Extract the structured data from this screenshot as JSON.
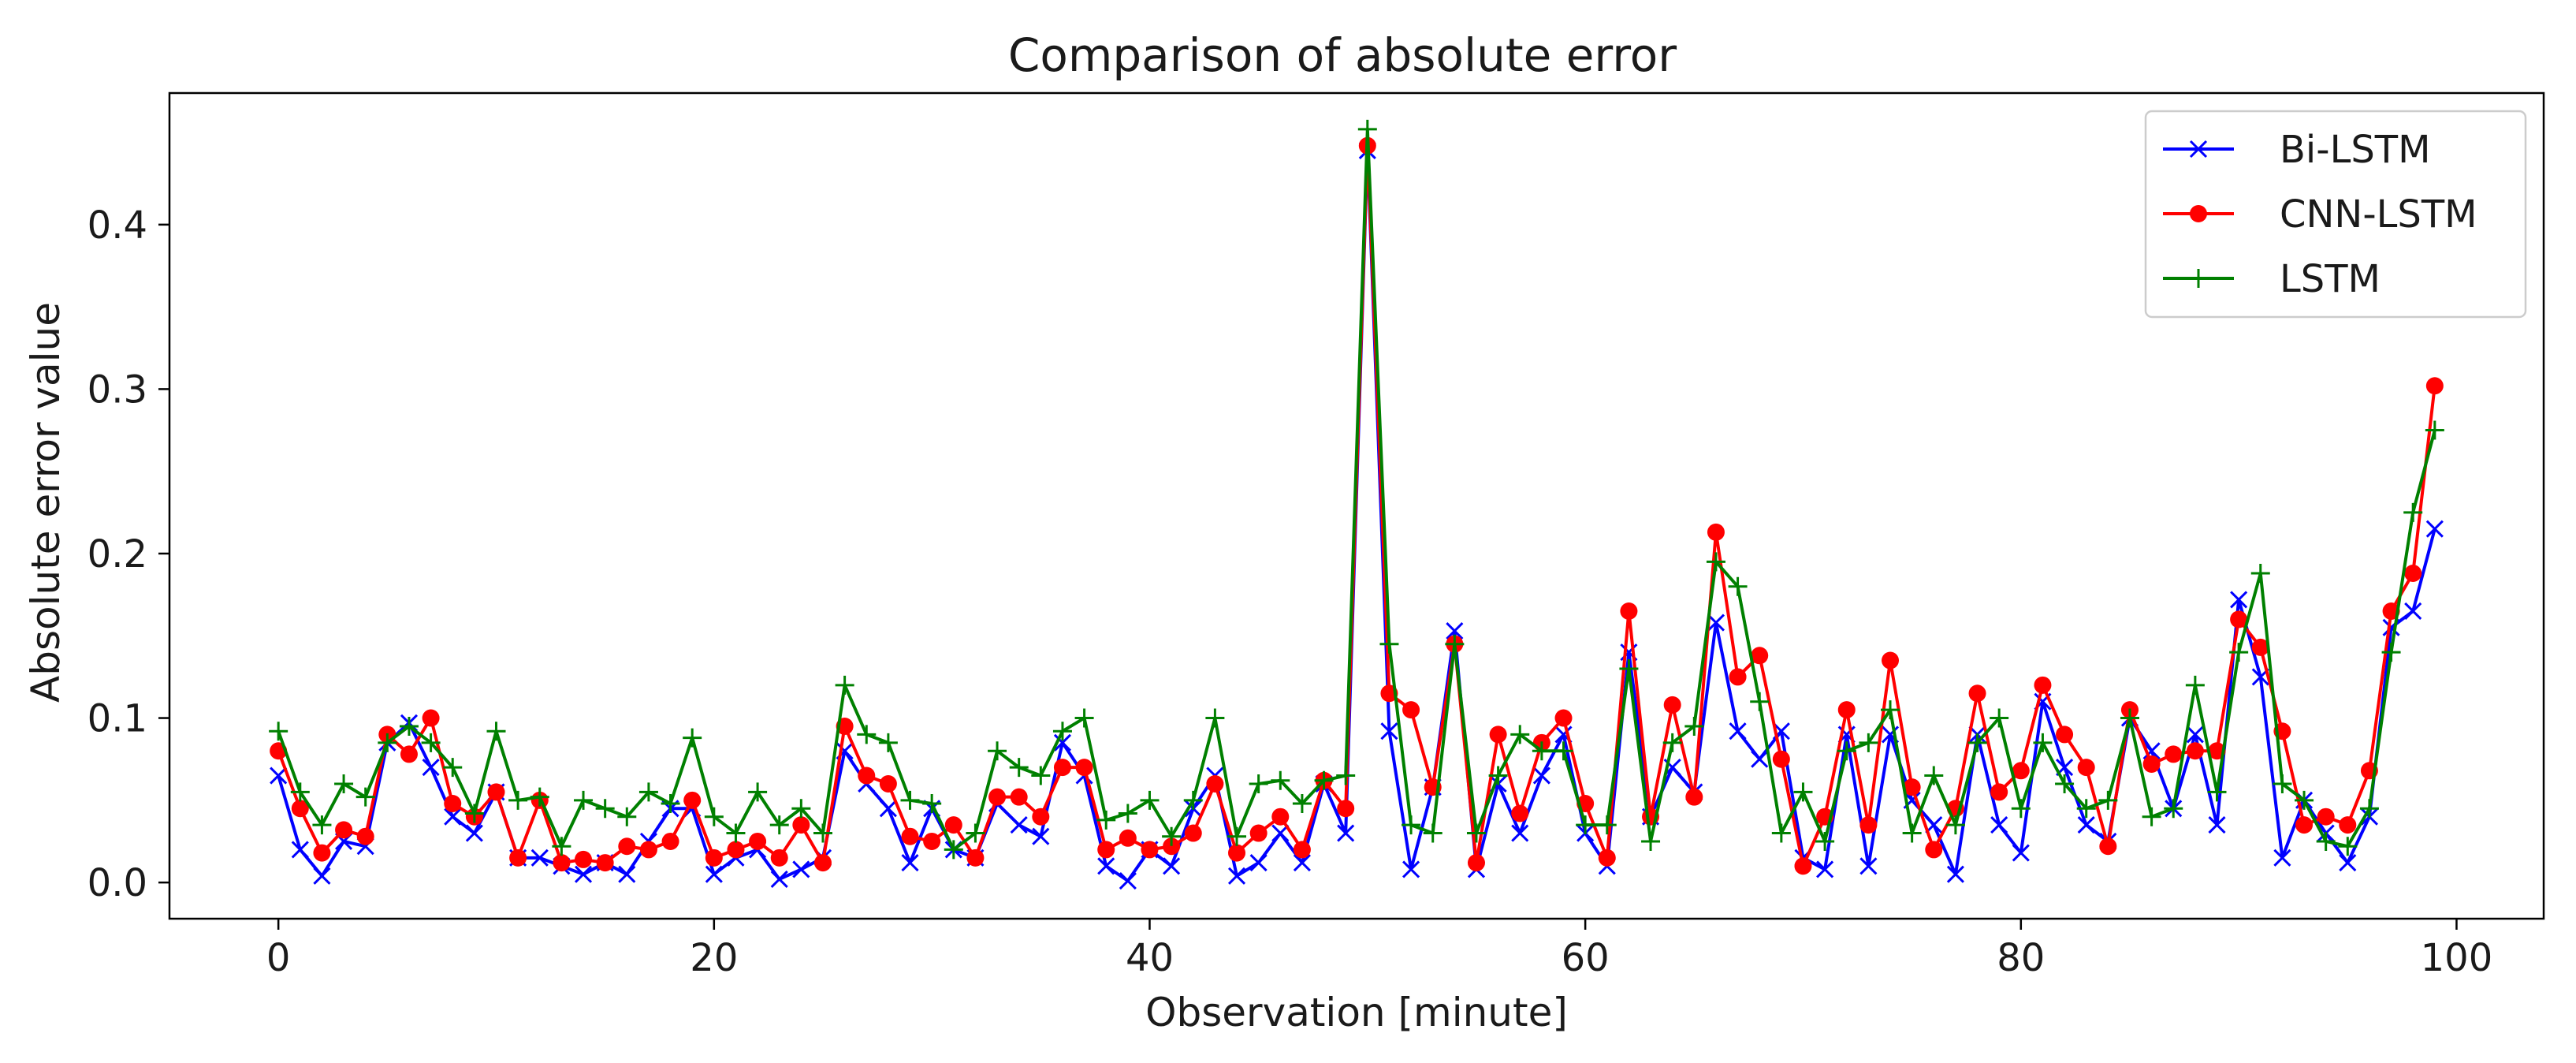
{
  "chart_data": {
    "type": "line",
    "title": "Comparison of absolute error",
    "xlabel": "Observation [minute]",
    "ylabel": "Absolute error value",
    "xlim": [
      -5,
      104
    ],
    "ylim": [
      -0.022,
      0.48
    ],
    "xticks": [
      0,
      20,
      40,
      60,
      80,
      100
    ],
    "xtick_labels": [
      "0",
      "20",
      "40",
      "60",
      "80",
      "100"
    ],
    "yticks": [
      0.0,
      0.1,
      0.2,
      0.3,
      0.4
    ],
    "ytick_labels": [
      "0.0",
      "0.1",
      "0.2",
      "0.3",
      "0.4"
    ],
    "grid": false,
    "legend_position": "top-right",
    "x": [
      0,
      1,
      2,
      3,
      4,
      5,
      6,
      7,
      8,
      9,
      10,
      11,
      12,
      13,
      14,
      15,
      16,
      17,
      18,
      19,
      20,
      21,
      22,
      23,
      24,
      25,
      26,
      27,
      28,
      29,
      30,
      31,
      32,
      33,
      34,
      35,
      36,
      37,
      38,
      39,
      40,
      41,
      42,
      43,
      44,
      45,
      46,
      47,
      48,
      49,
      50,
      51,
      52,
      53,
      54,
      55,
      56,
      57,
      58,
      59,
      60,
      61,
      62,
      63,
      64,
      65,
      66,
      67,
      68,
      69,
      70,
      71,
      72,
      73,
      74,
      75,
      76,
      77,
      78,
      79,
      80,
      81,
      82,
      83,
      84,
      85,
      86,
      87,
      88,
      89,
      90,
      91,
      92,
      93,
      94,
      95,
      96,
      97,
      98,
      99
    ],
    "series": [
      {
        "name": "Bi-LSTM",
        "color": "#0000ff",
        "marker": "x",
        "values": [
          0.065,
          0.02,
          0.004,
          0.025,
          0.022,
          0.085,
          0.097,
          0.07,
          0.04,
          0.03,
          0.055,
          0.015,
          0.015,
          0.01,
          0.005,
          0.012,
          0.005,
          0.025,
          0.045,
          0.045,
          0.005,
          0.015,
          0.02,
          0.002,
          0.008,
          0.015,
          0.08,
          0.06,
          0.045,
          0.012,
          0.045,
          0.02,
          0.015,
          0.048,
          0.035,
          0.028,
          0.085,
          0.065,
          0.01,
          0.001,
          0.02,
          0.01,
          0.045,
          0.065,
          0.004,
          0.012,
          0.03,
          0.012,
          0.06,
          0.03,
          0.445,
          0.092,
          0.008,
          0.058,
          0.153,
          0.008,
          0.06,
          0.03,
          0.065,
          0.09,
          0.03,
          0.01,
          0.14,
          0.04,
          0.07,
          0.055,
          0.158,
          0.092,
          0.075,
          0.092,
          0.015,
          0.008,
          0.09,
          0.01,
          0.09,
          0.05,
          0.035,
          0.005,
          0.09,
          0.035,
          0.018,
          0.11,
          0.07,
          0.035,
          0.025,
          0.1,
          0.08,
          0.045,
          0.09,
          0.035,
          0.172,
          0.125,
          0.015,
          0.05,
          0.03,
          0.012,
          0.04,
          0.155,
          0.165,
          0.215
        ]
      },
      {
        "name": "CNN-LSTM",
        "color": "#ff0000",
        "marker": "o",
        "values": [
          0.08,
          0.045,
          0.018,
          0.032,
          0.028,
          0.09,
          0.078,
          0.1,
          0.048,
          0.04,
          0.055,
          0.015,
          0.05,
          0.012,
          0.014,
          0.012,
          0.022,
          0.02,
          0.025,
          0.05,
          0.015,
          0.02,
          0.025,
          0.015,
          0.035,
          0.012,
          0.095,
          0.065,
          0.06,
          0.028,
          0.025,
          0.035,
          0.015,
          0.052,
          0.052,
          0.04,
          0.07,
          0.07,
          0.02,
          0.027,
          0.02,
          0.022,
          0.03,
          0.06,
          0.018,
          0.03,
          0.04,
          0.02,
          0.062,
          0.045,
          0.448,
          0.115,
          0.105,
          0.058,
          0.145,
          0.012,
          0.09,
          0.042,
          0.085,
          0.1,
          0.048,
          0.015,
          0.165,
          0.04,
          0.108,
          0.052,
          0.213,
          0.125,
          0.138,
          0.075,
          0.01,
          0.04,
          0.105,
          0.035,
          0.135,
          0.058,
          0.02,
          0.045,
          0.115,
          0.055,
          0.068,
          0.12,
          0.09,
          0.07,
          0.022,
          0.105,
          0.072,
          0.078,
          0.08,
          0.08,
          0.16,
          0.143,
          0.092,
          0.035,
          0.04,
          0.035,
          0.068,
          0.165,
          0.188,
          0.302
        ]
      },
      {
        "name": "LSTM",
        "color": "#008000",
        "marker": "+",
        "values": [
          0.092,
          0.055,
          0.035,
          0.06,
          0.052,
          0.085,
          0.095,
          0.085,
          0.07,
          0.042,
          0.092,
          0.05,
          0.052,
          0.022,
          0.05,
          0.045,
          0.04,
          0.055,
          0.048,
          0.088,
          0.04,
          0.03,
          0.055,
          0.035,
          0.045,
          0.03,
          0.12,
          0.09,
          0.085,
          0.05,
          0.048,
          0.02,
          0.03,
          0.08,
          0.07,
          0.065,
          0.092,
          0.1,
          0.038,
          0.042,
          0.05,
          0.028,
          0.05,
          0.1,
          0.028,
          0.06,
          0.062,
          0.048,
          0.062,
          0.065,
          0.458,
          0.145,
          0.035,
          0.03,
          0.145,
          0.03,
          0.065,
          0.09,
          0.08,
          0.08,
          0.035,
          0.035,
          0.13,
          0.025,
          0.085,
          0.095,
          0.195,
          0.18,
          0.11,
          0.03,
          0.055,
          0.025,
          0.08,
          0.085,
          0.105,
          0.03,
          0.065,
          0.035,
          0.085,
          0.1,
          0.045,
          0.085,
          0.06,
          0.045,
          0.05,
          0.1,
          0.04,
          0.045,
          0.12,
          0.055,
          0.14,
          0.188,
          0.06,
          0.05,
          0.025,
          0.022,
          0.045,
          0.14,
          0.225,
          0.275
        ]
      }
    ]
  }
}
